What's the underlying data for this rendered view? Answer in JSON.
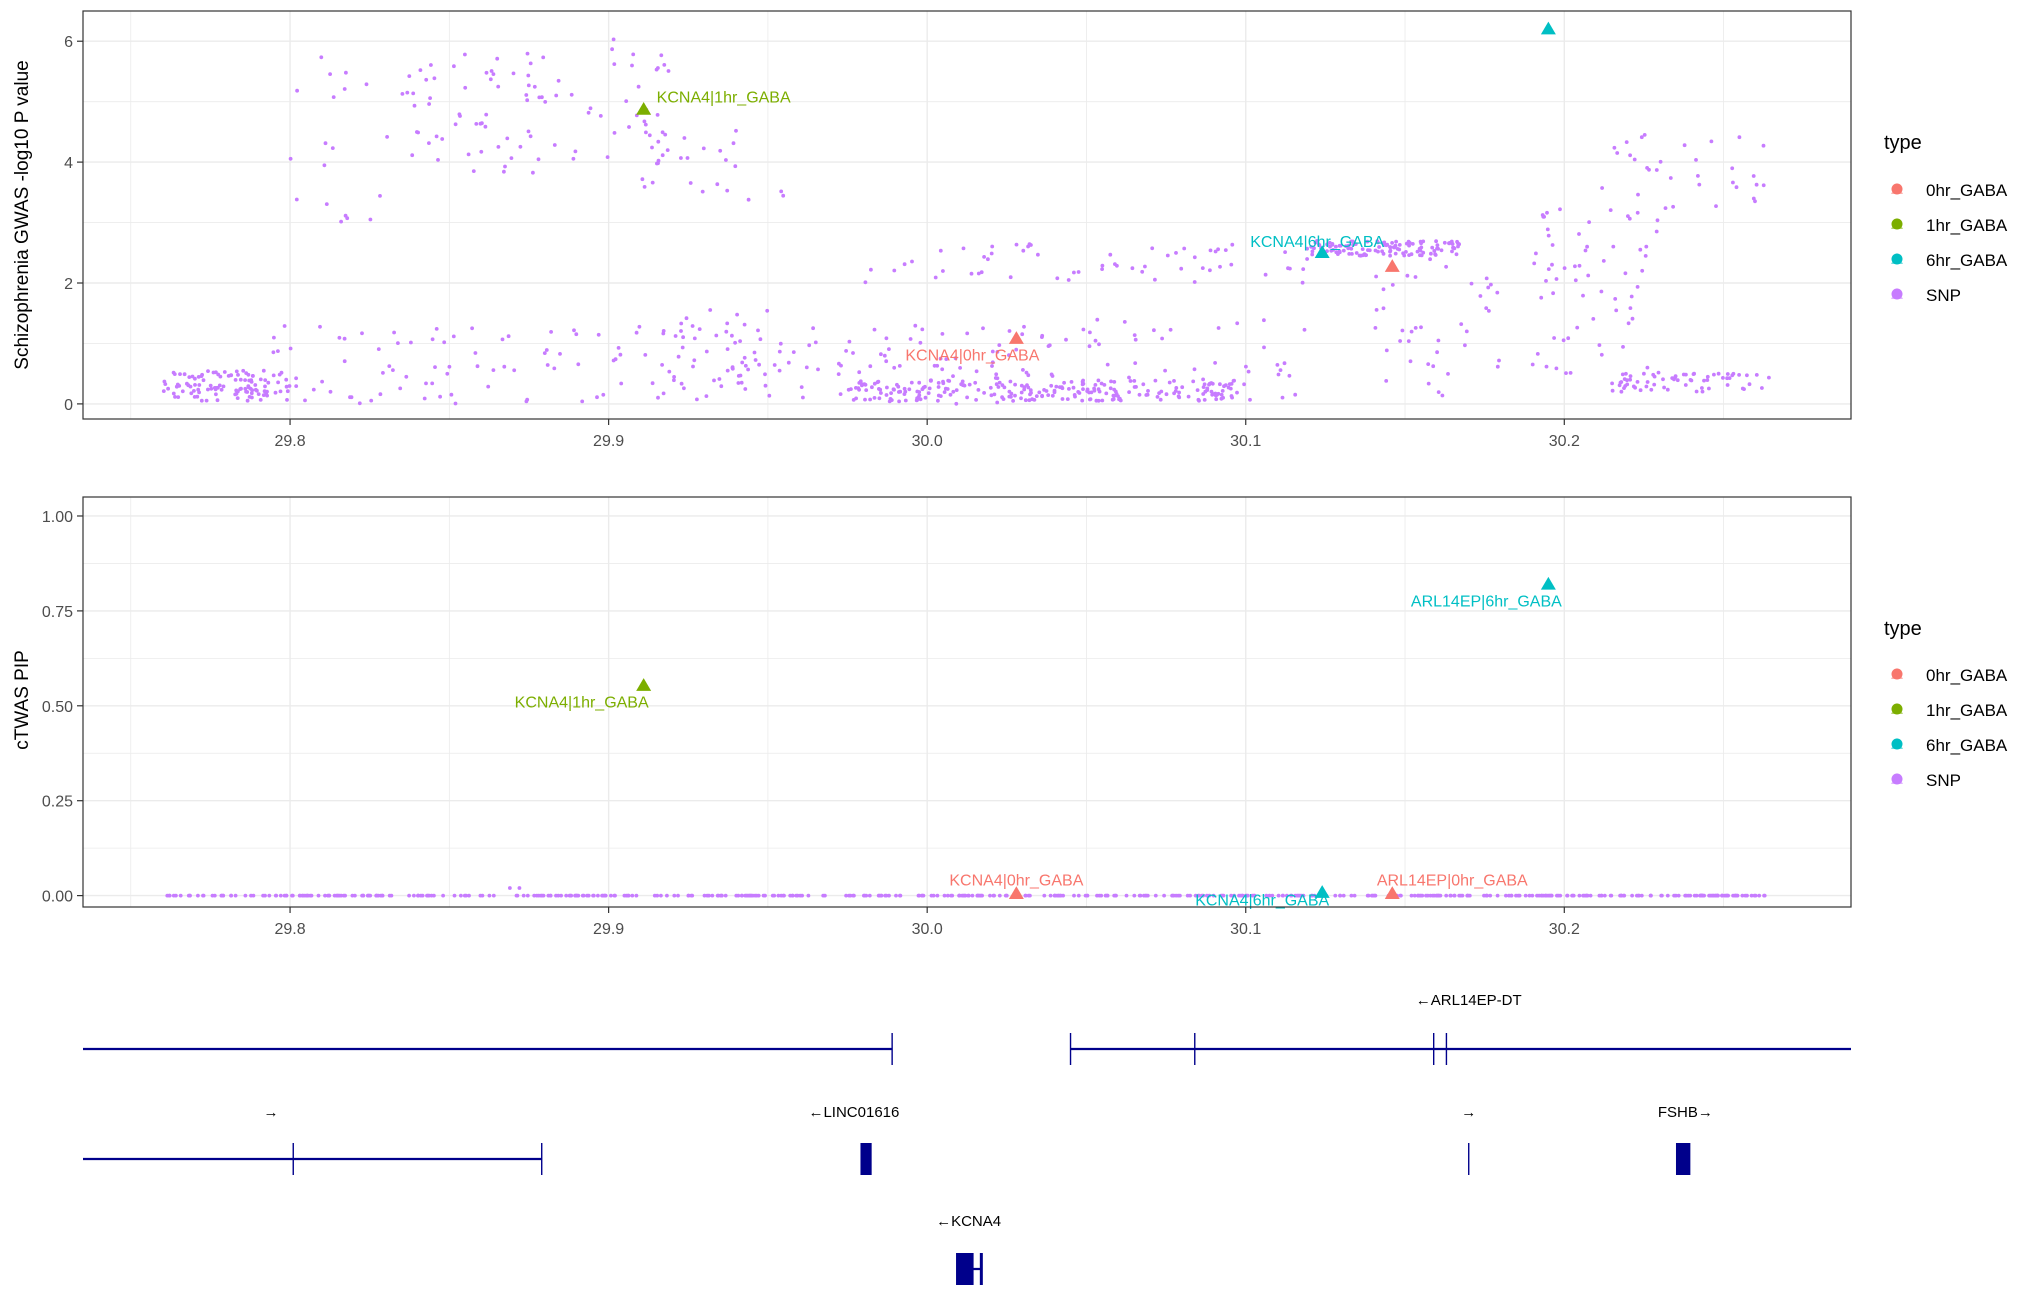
{
  "colors": {
    "0hr_GABA": "#F8766D",
    "1hr_GABA": "#7CAE00",
    "6hr_GABA": "#00BFC4",
    "SNP": "#C77CFF",
    "gene_track": "#00008B",
    "grid": "#EBEBEB",
    "axis_text": "#4D4D4D"
  },
  "legend": {
    "title": "type",
    "items": [
      "0hr_GABA",
      "1hr_GABA",
      "6hr_GABA",
      "SNP"
    ]
  },
  "chart_data": [
    {
      "type": "scatter",
      "ylabel": "Schizophrenia GWAS -log10 P value",
      "xlim": [
        29.735,
        30.29
      ],
      "ylim": [
        -0.25,
        6.5
      ],
      "x_ticks": [
        "29.8",
        "29.9",
        "30.0",
        "30.1",
        "30.2"
      ],
      "y_ticks": [
        "0",
        "2",
        "4",
        "6"
      ],
      "grid": true,
      "legend_position": "right",
      "genes": [
        {
          "label": "KCNA4|1hr_GABA",
          "type": "1hr_GABA",
          "x": 29.911,
          "y": 4.87
        },
        {
          "label": "KCNA4|6hr_GABA",
          "type": "6hr_GABA",
          "x": 30.124,
          "y": 2.5
        },
        {
          "label": "KCNA4|0hr_GABA",
          "type": "0hr_GABA",
          "x": 30.028,
          "y": 1.08
        },
        {
          "label": "",
          "type": "0hr_GABA",
          "x": 30.146,
          "y": 2.27
        },
        {
          "label": "",
          "type": "6hr_GABA",
          "x": 30.195,
          "y": 6.2
        }
      ],
      "snp_clusters": [
        {
          "x": [
            29.76,
            29.8
          ],
          "y": [
            0.05,
            0.55
          ],
          "n": 110
        },
        {
          "x": [
            29.79,
            29.98
          ],
          "y": [
            0.0,
            1.3
          ],
          "n": 130
        },
        {
          "x": [
            29.8,
            29.83
          ],
          "y": [
            3.0,
            5.8
          ],
          "n": 18
        },
        {
          "x": [
            29.83,
            29.88
          ],
          "y": [
            3.8,
            5.8
          ],
          "n": 60
        },
        {
          "x": [
            29.88,
            29.92
          ],
          "y": [
            4.0,
            6.1
          ],
          "n": 35
        },
        {
          "x": [
            29.91,
            29.96
          ],
          "y": [
            3.3,
            4.6
          ],
          "n": 25
        },
        {
          "x": [
            29.92,
            29.96
          ],
          "y": [
            0.3,
            1.7
          ],
          "n": 30
        },
        {
          "x": [
            29.975,
            30.1
          ],
          "y": [
            0.05,
            0.4
          ],
          "n": 220
        },
        {
          "x": [
            29.98,
            30.04
          ],
          "y": [
            0.0,
            1.3
          ],
          "n": 70
        },
        {
          "x": [
            29.98,
            30.12
          ],
          "y": [
            2.0,
            2.7
          ],
          "n": 60
        },
        {
          "x": [
            30.04,
            30.12
          ],
          "y": [
            0.05,
            1.4
          ],
          "n": 45
        },
        {
          "x": [
            30.12,
            30.168
          ],
          "y": [
            2.45,
            2.7
          ],
          "n": 120
        },
        {
          "x": [
            30.14,
            30.18
          ],
          "y": [
            0.1,
            2.4
          ],
          "n": 40
        },
        {
          "x": [
            30.19,
            30.23
          ],
          "y": [
            0.2,
            3.6
          ],
          "n": 70
        },
        {
          "x": [
            30.215,
            30.265
          ],
          "y": [
            0.2,
            0.5
          ],
          "n": 60
        },
        {
          "x": [
            30.215,
            30.265
          ],
          "y": [
            3.2,
            4.5
          ],
          "n": 30
        }
      ]
    },
    {
      "type": "scatter",
      "ylabel": "cTWAS PIP",
      "xlim": [
        29.735,
        30.29
      ],
      "ylim": [
        -0.03,
        1.05
      ],
      "x_ticks": [
        "29.8",
        "29.9",
        "30.0",
        "30.1",
        "30.2"
      ],
      "y_ticks": [
        "0.00",
        "0.25",
        "0.50",
        "0.75",
        "1.00"
      ],
      "grid": true,
      "legend_position": "right",
      "genes": [
        {
          "label": "ARL14EP|6hr_GABA",
          "type": "6hr_GABA",
          "x": 30.195,
          "y": 0.82
        },
        {
          "label": "KCNA4|1hr_GABA",
          "type": "1hr_GABA",
          "x": 29.911,
          "y": 0.553
        },
        {
          "label": "KCNA4|0hr_GABA",
          "type": "0hr_GABA",
          "x": 30.028,
          "y": 0.005
        },
        {
          "label": "KCNA4|6hr_GABA",
          "type": "6hr_GABA",
          "x": 30.124,
          "y": 0.008
        },
        {
          "label": "ARL14EP|0hr_GABA",
          "type": "0hr_GABA",
          "x": 30.146,
          "y": 0.005
        }
      ],
      "snp_range": [
        29.76,
        30.265
      ],
      "snp_extra": [
        {
          "x": 29.869,
          "y": 0.02
        },
        {
          "x": 29.872,
          "y": 0.02
        }
      ]
    }
  ],
  "gene_track": {
    "transcripts": [
      {
        "x": [
          29.735,
          29.989
        ],
        "exons": [
          29.989
        ],
        "row": 0
      },
      {
        "x": [
          30.045,
          30.29
        ],
        "exons": [
          30.045,
          30.084,
          30.159,
          30.163
        ],
        "row": 0
      },
      {
        "x": [
          29.735,
          29.879
        ],
        "exons": [
          29.801,
          29.879
        ],
        "row": 1
      },
      {
        "x": [
          29.98,
          29.982
        ],
        "exons": [
          29.98,
          29.981,
          29.982
        ],
        "row": 1,
        "block": true
      },
      {
        "x": [
          30.17,
          30.17
        ],
        "exons": [
          30.17
        ],
        "row": 1
      },
      {
        "x": [
          30.236,
          30.239
        ],
        "exons": [
          30.236,
          30.2365,
          30.237,
          30.238,
          30.239
        ],
        "row": 1,
        "block": true
      },
      {
        "x": [
          30.01,
          30.017
        ],
        "exons": [
          30.01,
          30.011,
          30.012,
          30.013,
          30.017
        ],
        "row": 2,
        "block": true
      }
    ],
    "labels": [
      {
        "text": "←ARL14EP-DT",
        "x": 30.17,
        "row": 0
      },
      {
        "text": "→",
        "x": 29.794,
        "row": 1
      },
      {
        "text": "←LINC01616",
        "x": 29.977,
        "row": 1
      },
      {
        "text": "→",
        "x": 30.17,
        "row": 1
      },
      {
        "text": "FSHB→",
        "x": 30.238,
        "row": 1
      },
      {
        "text": "←KCNA4",
        "x": 30.013,
        "row": 2
      }
    ]
  }
}
